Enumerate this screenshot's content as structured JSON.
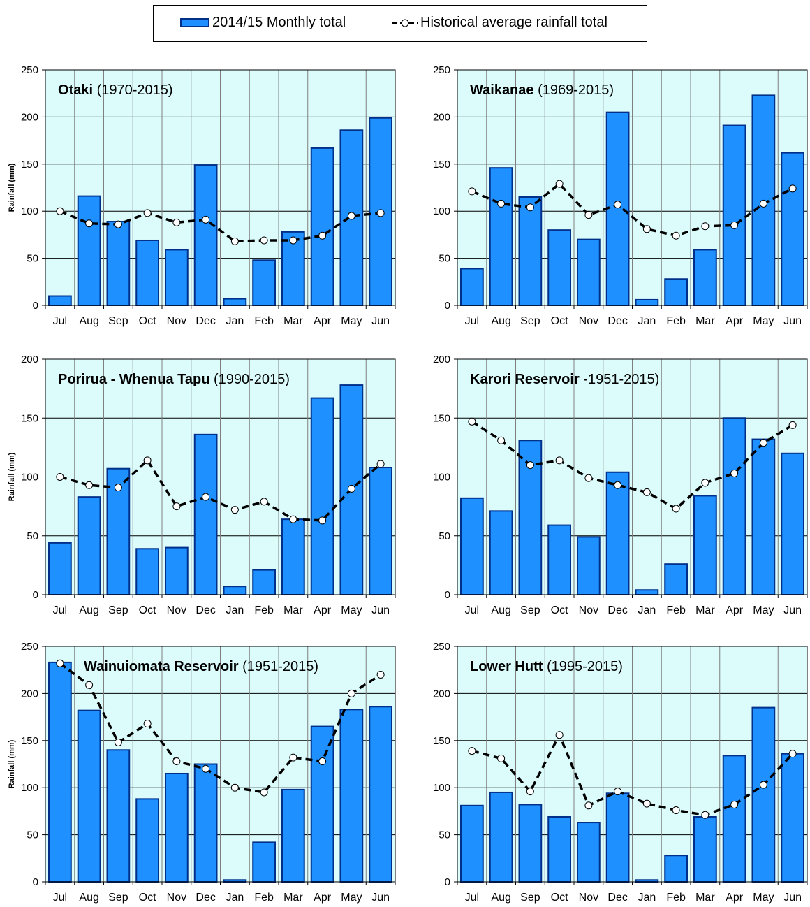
{
  "legend": {
    "bar_label": "2014/15 Monthly total",
    "line_label": "Historical average rainfall total"
  },
  "colors": {
    "plot_bg": "#dcfcfc",
    "bar_fill": "#1e90ff",
    "bar_border": "#00308a",
    "line": "#000000",
    "marker_fill": "#ffffff"
  },
  "chart_data": [
    {
      "type": "bar",
      "title": "Otaki",
      "subtitle": "(1970-2015)",
      "ylabel": "Rainfall (mm)",
      "ylim": [
        0,
        250
      ],
      "yticks": [
        0,
        50,
        100,
        150,
        200,
        250
      ],
      "categories": [
        "Jul",
        "Aug",
        "Sep",
        "Oct",
        "Nov",
        "Dec",
        "Jan",
        "Feb",
        "Mar",
        "Apr",
        "May",
        "Jun"
      ],
      "series": [
        {
          "name": "2014/15 Monthly total",
          "type": "bar",
          "values": [
            10,
            116,
            89,
            69,
            59,
            149,
            7,
            48,
            78,
            167,
            186,
            199
          ]
        },
        {
          "name": "Historical average rainfall total",
          "type": "line",
          "values": [
            100,
            87,
            86,
            98,
            88,
            91,
            68,
            69,
            69,
            74,
            95,
            98
          ]
        }
      ],
      "grid": true
    },
    {
      "type": "bar",
      "title": "Waikanae",
      "subtitle": "(1969-2015)",
      "ylabel": "",
      "ylim": [
        0,
        250
      ],
      "yticks": [
        0,
        50,
        100,
        150,
        200,
        250
      ],
      "categories": [
        "Jul",
        "Aug",
        "Sep",
        "Oct",
        "Nov",
        "Dec",
        "Jan",
        "Feb",
        "Mar",
        "Apr",
        "May",
        "Jun"
      ],
      "series": [
        {
          "name": "2014/15 Monthly total",
          "type": "bar",
          "values": [
            39,
            146,
            115,
            80,
            70,
            205,
            6,
            28,
            59,
            191,
            223,
            162
          ]
        },
        {
          "name": "Historical average rainfall total",
          "type": "line",
          "values": [
            121,
            108,
            104,
            129,
            96,
            107,
            81,
            74,
            84,
            85,
            108,
            124
          ]
        }
      ],
      "grid": true
    },
    {
      "type": "bar",
      "title": "Porirua - Whenua Tapu",
      "subtitle": "(1990-2015)",
      "ylabel": "Rainfall (mm)",
      "ylim": [
        0,
        200
      ],
      "yticks": [
        0,
        50,
        100,
        150,
        200
      ],
      "categories": [
        "Jul",
        "Aug",
        "Sep",
        "Oct",
        "Nov",
        "Dec",
        "Jan",
        "Feb",
        "Mar",
        "Apr",
        "May",
        "Jun"
      ],
      "series": [
        {
          "name": "2014/15 Monthly total",
          "type": "bar",
          "values": [
            44,
            83,
            107,
            39,
            40,
            136,
            7,
            21,
            64,
            167,
            178,
            108
          ]
        },
        {
          "name": "Historical average rainfall total",
          "type": "line",
          "values": [
            100,
            93,
            91,
            114,
            75,
            83,
            72,
            79,
            64,
            63,
            90,
            111
          ]
        }
      ],
      "grid": true
    },
    {
      "type": "bar",
      "title": "Karori Reservoir",
      "subtitle": "-1951-2015)",
      "ylabel": "",
      "ylim": [
        0,
        200
      ],
      "yticks": [
        0,
        50,
        100,
        150,
        200
      ],
      "categories": [
        "Jul",
        "Aug",
        "Sep",
        "Oct",
        "Nov",
        "Dec",
        "Jan",
        "Feb",
        "Mar",
        "Apr",
        "May",
        "Jun"
      ],
      "series": [
        {
          "name": "2014/15 Monthly total",
          "type": "bar",
          "values": [
            82,
            71,
            131,
            59,
            49,
            104,
            4,
            26,
            84,
            150,
            132,
            120
          ]
        },
        {
          "name": "Historical average rainfall total",
          "type": "line",
          "values": [
            147,
            131,
            110,
            114,
            99,
            93,
            87,
            73,
            95,
            103,
            129,
            144
          ]
        }
      ],
      "grid": true
    },
    {
      "type": "bar",
      "title": "Wainuiomata Reservoir",
      "subtitle": "(1951-2015)",
      "ylabel": "Rainfall (mm)",
      "ylim": [
        0,
        250
      ],
      "yticks": [
        0,
        50,
        100,
        150,
        200,
        250
      ],
      "categories": [
        "Jul",
        "Aug",
        "Sep",
        "Oct",
        "Nov",
        "Dec",
        "Jan",
        "Feb",
        "Mar",
        "Apr",
        "May",
        "Jun"
      ],
      "series": [
        {
          "name": "2014/15 Monthly total",
          "type": "bar",
          "values": [
            233,
            182,
            140,
            88,
            115,
            125,
            2,
            42,
            98,
            165,
            183,
            186
          ]
        },
        {
          "name": "Historical average rainfall total",
          "type": "line",
          "values": [
            232,
            209,
            148,
            168,
            128,
            120,
            100,
            95,
            132,
            128,
            200,
            220
          ]
        }
      ],
      "grid": true
    },
    {
      "type": "bar",
      "title": "Lower Hutt",
      "subtitle": "(1995-2015)",
      "ylabel": "",
      "ylim": [
        0,
        250
      ],
      "yticks": [
        0,
        50,
        100,
        150,
        200,
        250
      ],
      "categories": [
        "Jul",
        "Aug",
        "Sep",
        "Oct",
        "Nov",
        "Dec",
        "Jan",
        "Feb",
        "Mar",
        "Apr",
        "May",
        "Jun"
      ],
      "series": [
        {
          "name": "2014/15 Monthly total",
          "type": "bar",
          "values": [
            81,
            95,
            82,
            69,
            63,
            94,
            2,
            28,
            69,
            134,
            185,
            136
          ]
        },
        {
          "name": "Historical average rainfall total",
          "type": "line",
          "values": [
            139,
            131,
            96,
            156,
            81,
            96,
            83,
            76,
            71,
            82,
            103,
            136
          ]
        }
      ],
      "grid": true
    }
  ]
}
